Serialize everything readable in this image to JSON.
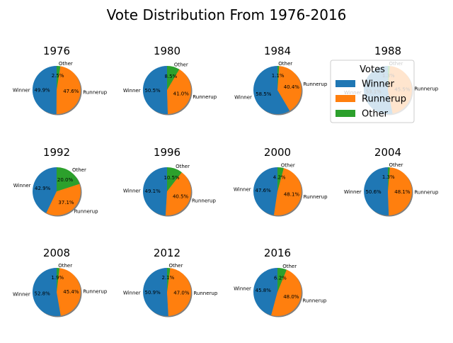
{
  "chart_data": {
    "type": "pie",
    "title": "Vote Distribution From 1976-2016",
    "labels": [
      "Winner",
      "Runnerup",
      "Other"
    ],
    "colors": [
      "#1f77b4",
      "#ff7f0e",
      "#2ca02c"
    ],
    "legend": {
      "title": "Votes",
      "placement": "top-right",
      "entries": [
        "Winner",
        "Runnerup",
        "Other"
      ]
    },
    "pies": [
      {
        "year": "1976",
        "values": [
          49.9,
          47.6,
          2.5
        ]
      },
      {
        "year": "1980",
        "values": [
          50.5,
          41.0,
          8.5
        ]
      },
      {
        "year": "1984",
        "values": [
          58.5,
          40.4,
          1.1
        ]
      },
      {
        "year": "1988",
        "values": [
          53.1,
          45.5,
          1.3
        ]
      },
      {
        "year": "1992",
        "values": [
          42.9,
          37.1,
          20.0
        ]
      },
      {
        "year": "1996",
        "values": [
          49.1,
          40.5,
          10.5
        ]
      },
      {
        "year": "2000",
        "values": [
          47.6,
          48.1,
          4.2
        ]
      },
      {
        "year": "2004",
        "values": [
          50.6,
          48.1,
          1.3
        ]
      },
      {
        "year": "2008",
        "values": [
          52.8,
          45.4,
          1.9
        ]
      },
      {
        "year": "2012",
        "values": [
          50.9,
          47.0,
          2.1
        ]
      },
      {
        "year": "2016",
        "values": [
          45.8,
          48.0,
          6.2
        ]
      }
    ]
  }
}
